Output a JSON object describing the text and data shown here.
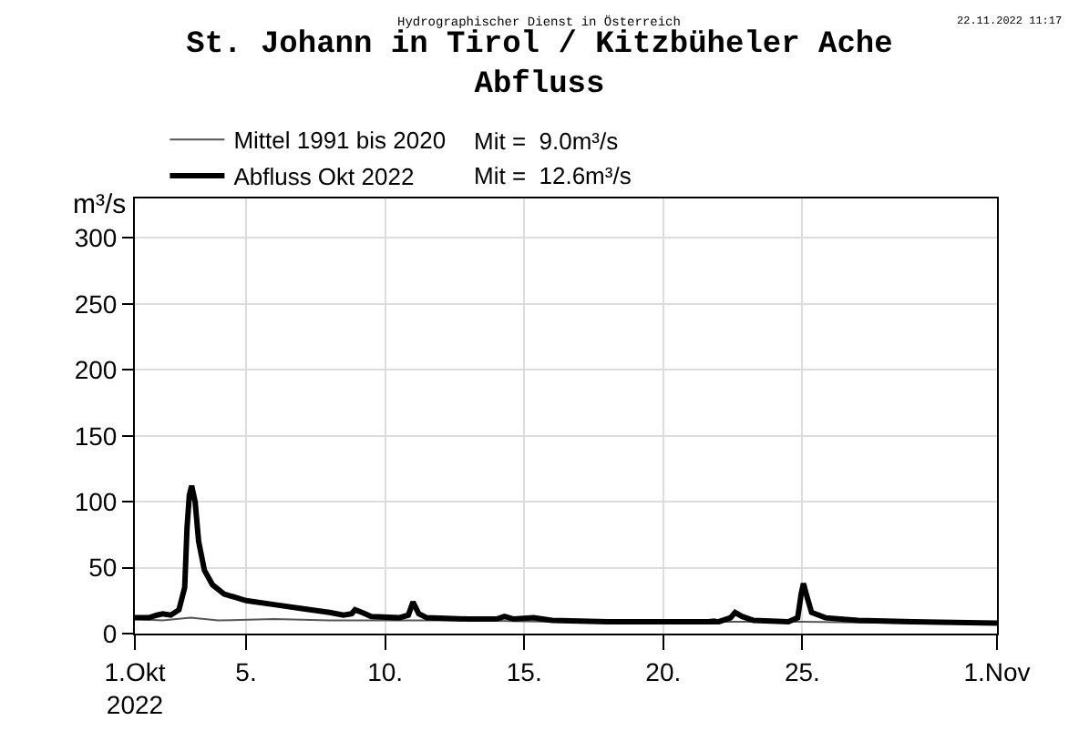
{
  "chart_data": {
    "type": "line",
    "title": "St. Johann in Tirol / Kitzbüheler Ache\nAbfluss",
    "ylabel": "m³/s",
    "annotations": [
      "Hydrographischer Dienst in Österreich",
      "22.11.2022 11:17",
      "Mit =  9.0m³/s",
      "Mit =  12.6m³/s"
    ],
    "series": [
      {
        "name": "Mittel 1991 bis 2020",
        "color": "#555555",
        "x": [
          "2022-10-01T00:00",
          "2022-10-02T00:00",
          "2022-10-03T00:00",
          "2022-10-04T00:00",
          "2022-10-06T00:00",
          "2022-10-08T00:00",
          "2022-10-10T00:00",
          "2022-10-13T00:00",
          "2022-10-16T00:00",
          "2022-10-19T00:00",
          "2022-10-21T12:00",
          "2022-10-21T20:00",
          "2022-10-22T04:00",
          "2022-10-25T00:00",
          "2022-10-29T00:00",
          "2022-11-01T00:00"
        ],
        "values": [
          11,
          10,
          12,
          10,
          11,
          10,
          10,
          10,
          9,
          9,
          10,
          11,
          9,
          9,
          8,
          8
        ]
      },
      {
        "name": "Abfluss Okt 2022",
        "color": "#000000",
        "x": [
          "2022-10-01T00:00",
          "2022-10-01T12:00",
          "2022-10-01T19:00",
          "2022-10-02T00:00",
          "2022-10-02T07:00",
          "2022-10-02T14:00",
          "2022-10-02T19:00",
          "2022-10-02T21:00",
          "2022-10-02T23:00",
          "2022-10-03T01:00",
          "2022-10-03T04:00",
          "2022-10-03T07:00",
          "2022-10-03T12:00",
          "2022-10-03T19:00",
          "2022-10-04T05:00",
          "2022-10-05T00:00",
          "2022-10-06T00:00",
          "2022-10-07T00:00",
          "2022-10-08T00:00",
          "2022-10-08T12:00",
          "2022-10-08T19:00",
          "2022-10-08T22:00",
          "2022-10-09T04:00",
          "2022-10-09T12:00",
          "2022-10-10T12:00",
          "2022-10-10T20:00",
          "2022-10-11T00:00",
          "2022-10-11T05:00",
          "2022-10-11T12:00",
          "2022-10-13T00:00",
          "2022-10-14T00:00",
          "2022-10-14T07:00",
          "2022-10-14T15:00",
          "2022-10-15T08:00",
          "2022-10-16T00:00",
          "2022-10-18T00:00",
          "2022-10-21T00:00",
          "2022-10-22T00:00",
          "2022-10-22T10:00",
          "2022-10-22T14:00",
          "2022-10-22T20:00",
          "2022-10-23T06:00",
          "2022-10-24T12:00",
          "2022-10-24T20:00",
          "2022-10-24T23:00",
          "2022-10-25T01:00",
          "2022-10-25T04:00",
          "2022-10-25T08:00",
          "2022-10-25T20:00",
          "2022-10-27T00:00",
          "2022-10-29T00:00",
          "2022-11-01T00:00"
        ],
        "values": [
          12,
          12,
          14,
          15,
          14,
          18,
          35,
          80,
          105,
          112,
          100,
          70,
          48,
          37,
          30,
          25,
          22,
          19,
          16,
          14,
          15,
          18,
          16,
          13,
          12,
          14,
          24,
          15,
          12,
          11,
          11,
          13,
          11,
          12,
          10,
          9,
          9,
          9,
          12,
          16,
          13,
          10,
          9,
          12,
          30,
          38,
          28,
          16,
          12,
          10,
          9,
          8
        ]
      }
    ],
    "xlim": [
      "2022-10-01",
      "2022-11-01"
    ],
    "xticks": [
      {
        "value": "2022-10-01",
        "label": "1.Okt\n2022"
      },
      {
        "value": "2022-10-05",
        "label": "5."
      },
      {
        "value": "2022-10-10",
        "label": "10."
      },
      {
        "value": "2022-10-15",
        "label": "15."
      },
      {
        "value": "2022-10-20",
        "label": "20."
      },
      {
        "value": "2022-10-25",
        "label": "25."
      },
      {
        "value": "2022-11-01",
        "label": "1.Nov"
      }
    ],
    "ylim": [
      0,
      330
    ],
    "yticks": [
      0,
      50,
      100,
      150,
      200,
      250,
      300
    ],
    "grid": true,
    "legend": "top left",
    "marker": "none",
    "line_style": "solid"
  }
}
